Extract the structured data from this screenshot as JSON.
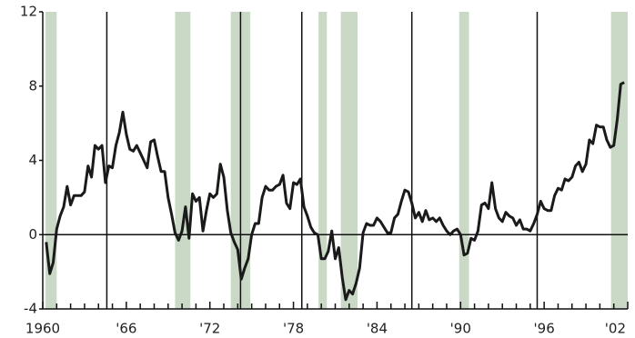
{
  "chart_data": {
    "type": "line",
    "x": [
      1960.25,
      1960.5,
      1960.75,
      1961,
      1961.25,
      1961.5,
      1961.75,
      1962,
      1962.25,
      1962.5,
      1962.75,
      1963,
      1963.25,
      1963.5,
      1963.75,
      1964,
      1964.25,
      1964.5,
      1964.75,
      1965,
      1965.25,
      1965.5,
      1965.75,
      1966,
      1966.25,
      1966.5,
      1966.75,
      1967,
      1967.25,
      1967.5,
      1967.75,
      1968,
      1968.25,
      1968.5,
      1968.75,
      1969,
      1969.25,
      1969.5,
      1969.75,
      1970,
      1970.25,
      1970.5,
      1970.75,
      1971,
      1971.25,
      1971.5,
      1971.75,
      1972,
      1972.25,
      1972.5,
      1972.75,
      1973,
      1973.25,
      1973.5,
      1973.75,
      1974,
      1974.25,
      1974.5,
      1974.75,
      1975,
      1975.25,
      1975.5,
      1975.75,
      1976,
      1976.25,
      1976.5,
      1976.75,
      1977,
      1977.25,
      1977.5,
      1977.75,
      1978,
      1978.25,
      1978.5,
      1978.75,
      1979,
      1979.25,
      1979.5,
      1979.75,
      1980,
      1980.25,
      1980.5,
      1980.75,
      1981,
      1981.25,
      1981.5,
      1981.75,
      1982,
      1982.25,
      1982.5,
      1982.75,
      1983,
      1983.25,
      1983.5,
      1983.75,
      1984,
      1984.25,
      1984.5,
      1984.75,
      1985,
      1985.25,
      1985.5,
      1985.75,
      1986,
      1986.25,
      1986.5,
      1986.75,
      1987,
      1987.25,
      1987.5,
      1987.75,
      1988,
      1988.25,
      1988.5,
      1988.75,
      1989,
      1989.25,
      1989.5,
      1989.75,
      1990,
      1990.25,
      1990.5,
      1990.75,
      1991,
      1991.25,
      1991.5,
      1991.75,
      1992,
      1992.25,
      1992.5,
      1992.75,
      1993,
      1993.25,
      1993.5,
      1993.75,
      1994,
      1994.25,
      1994.5,
      1994.75,
      1995,
      1995.25,
      1995.5,
      1995.75,
      1996,
      1996.25,
      1996.5,
      1996.75,
      1997,
      1997.25,
      1997.5,
      1997.75,
      1998,
      1998.25,
      1998.5,
      1998.75,
      1999,
      1999.25,
      1999.5,
      1999.75,
      2000,
      2000.25,
      2000.5,
      2000.75,
      2001,
      2001.25,
      2001.5,
      2001.75
    ],
    "values": [
      -0.4,
      -2.1,
      -1.5,
      0.3,
      1.0,
      1.5,
      2.6,
      1.6,
      2.1,
      2.1,
      2.1,
      2.3,
      3.7,
      3.1,
      4.8,
      4.6,
      4.8,
      2.8,
      3.7,
      3.6,
      4.8,
      5.5,
      6.6,
      5.4,
      4.6,
      4.5,
      4.8,
      4.4,
      4.0,
      3.6,
      5.0,
      5.1,
      4.2,
      3.4,
      3.4,
      2.0,
      1.1,
      0.1,
      -0.3,
      0.2,
      1.5,
      -0.2,
      2.2,
      1.8,
      2.0,
      0.2,
      1.3,
      2.2,
      2.0,
      2.2,
      3.8,
      3.1,
      1.3,
      0.1,
      -0.4,
      -0.8,
      -2.4,
      -1.8,
      -1.3,
      0.0,
      0.6,
      0.6,
      2.0,
      2.6,
      2.4,
      2.4,
      2.6,
      2.7,
      3.2,
      1.7,
      1.4,
      2.8,
      2.7,
      3.0,
      1.5,
      1.0,
      0.4,
      0.1,
      0.0,
      -1.3,
      -1.3,
      -0.9,
      0.2,
      -1.3,
      -0.7,
      -2.3,
      -3.5,
      -3.0,
      -3.2,
      -2.6,
      -1.8,
      0.1,
      0.6,
      0.5,
      0.5,
      0.9,
      0.7,
      0.4,
      0.1,
      0.1,
      0.9,
      1.1,
      1.8,
      2.4,
      2.3,
      1.7,
      0.9,
      1.2,
      0.7,
      1.3,
      0.8,
      0.9,
      0.7,
      0.9,
      0.5,
      0.2,
      0.0,
      0.2,
      0.3,
      0.0,
      -1.1,
      -1.0,
      -0.2,
      -0.3,
      0.2,
      1.6,
      1.7,
      1.4,
      2.8,
      1.4,
      0.9,
      0.7,
      1.2,
      1.0,
      0.9,
      0.5,
      0.8,
      0.3,
      0.3,
      0.2,
      0.6,
      1.1,
      1.8,
      1.4,
      1.3,
      1.3,
      2.1,
      2.5,
      2.4,
      3.0,
      2.9,
      3.1,
      3.7,
      3.9,
      3.4,
      3.8,
      5.1,
      4.9,
      5.9,
      5.8,
      5.8,
      5.1,
      4.7,
      4.8,
      6.2,
      8.1,
      8.2
    ],
    "color": "#1a1a1a",
    "xlim": [
      1960,
      2002
    ],
    "xticks": [
      1960,
      {
        "value": 1966,
        "label": "'66"
      },
      {
        "value": 1972,
        "label": "'72"
      },
      {
        "value": 1978,
        "label": "'78"
      },
      {
        "value": 1984,
        "label": "'84"
      },
      {
        "value": 1990,
        "label": "'90"
      },
      {
        "value": 1996,
        "label": "'96"
      },
      {
        "value": 2002,
        "label": "'02"
      }
    ],
    "x_minor_ticks": [
      1961,
      1962,
      1963,
      1964,
      1965,
      1967,
      1968,
      1969,
      1970,
      1971,
      1973,
      1974,
      1975,
      1976,
      1977,
      1979,
      1980,
      1981,
      1982,
      1983,
      1985,
      1986,
      1987,
      1988,
      1989,
      1991,
      1992,
      1993,
      1994,
      1995,
      1997,
      1998,
      1999,
      2000,
      2001
    ],
    "ylim": [
      -4,
      12
    ],
    "yticks": [
      -4,
      0,
      4,
      8,
      12
    ],
    "zero_line": 0,
    "shaded_periods": [
      [
        1960.2,
        1961.0
      ],
      [
        1969.5,
        1970.6
      ],
      [
        1973.5,
        1974.9
      ],
      [
        1979.8,
        1980.4
      ],
      [
        1981.4,
        1982.6
      ],
      [
        1989.9,
        1990.6
      ],
      [
        2000.8,
        2002.0
      ]
    ],
    "shade_color": "#c9d9c6",
    "vertical_lines": [
      1964.6,
      1974.2,
      1978.6,
      1986.5,
      1995.5
    ]
  }
}
